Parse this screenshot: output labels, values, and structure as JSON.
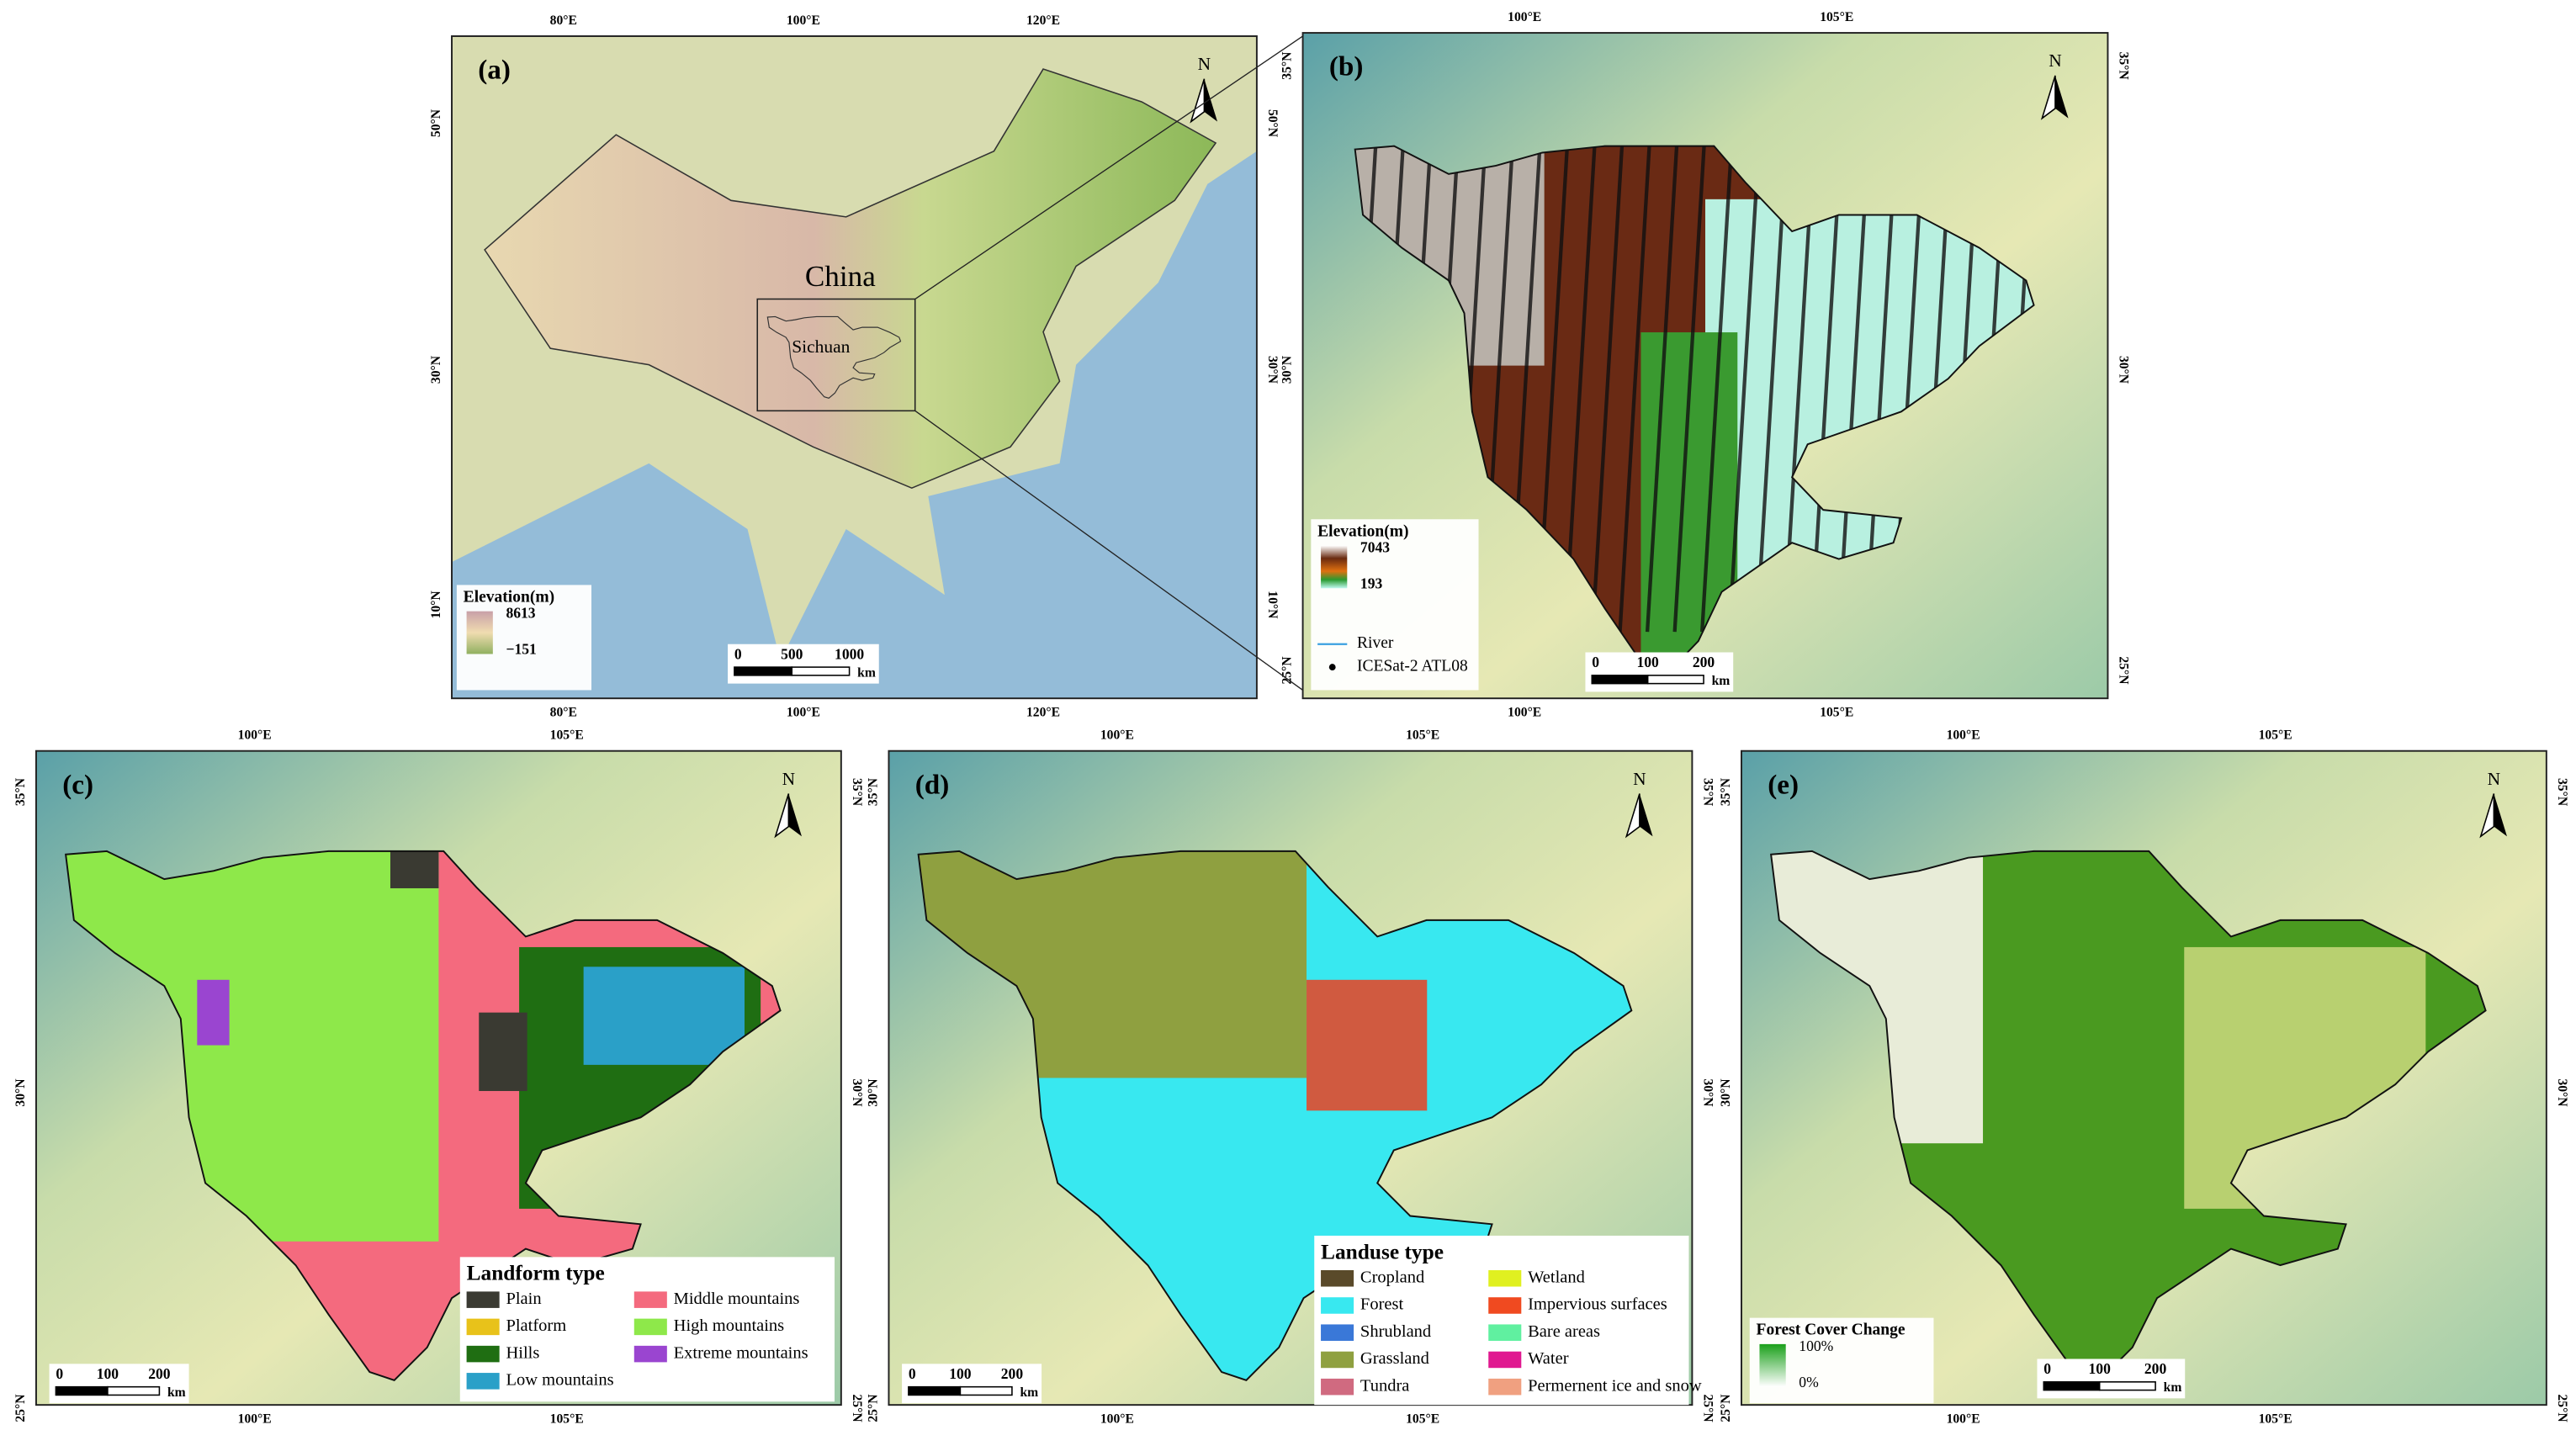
{
  "panels": [
    {
      "label": "(a)",
      "lon_ticks": [
        "80°E",
        "100°E",
        "120°E"
      ],
      "lat_ticks": [
        "50°N",
        "30°N",
        "10°N"
      ],
      "north": "N",
      "place_labels": [
        "China",
        "Sichuan"
      ],
      "legend": {
        "title": "Elevation(m)",
        "max": "8613",
        "min": "−151"
      },
      "scale": {
        "ticks": [
          "0",
          "500",
          "1000"
        ],
        "unit": "km"
      }
    },
    {
      "label": "(b)",
      "lon_ticks": [
        "100°E",
        "105°E"
      ],
      "lat_ticks": [
        "35°N",
        "30°N",
        "25°N"
      ],
      "north": "N",
      "legend": {
        "title": "Elevation(m)",
        "max": "7043",
        "min": "193",
        "items": [
          {
            "name": "River",
            "color": "#3aa0e0"
          },
          {
            "name": "ICESat-2 ATL08",
            "color": "#000000"
          }
        ]
      },
      "scale": {
        "ticks": [
          "0",
          "100",
          "200"
        ],
        "unit": "km"
      }
    },
    {
      "label": "(c)",
      "lon_ticks": [
        "100°E",
        "105°E"
      ],
      "lat_ticks": [
        "35°N",
        "30°N",
        "25°N"
      ],
      "north": "N",
      "legend": {
        "title": "Landform type",
        "items": [
          {
            "name": "Plain",
            "color": "#3a3a32"
          },
          {
            "name": "Platform",
            "color": "#e8c21a"
          },
          {
            "name": "Hills",
            "color": "#1f6e12"
          },
          {
            "name": "Low mountains",
            "color": "#2aa0c8"
          },
          {
            "name": "Middle mountains",
            "color": "#f46a7e"
          },
          {
            "name": "High mountains",
            "color": "#8ee84a"
          },
          {
            "name": "Extreme mountains",
            "color": "#9a45d0"
          }
        ]
      },
      "scale": {
        "ticks": [
          "0",
          "100",
          "200"
        ],
        "unit": "km"
      }
    },
    {
      "label": "(d)",
      "lon_ticks": [
        "100°E",
        "105°E"
      ],
      "lat_ticks": [
        "35°N",
        "30°N",
        "25°N"
      ],
      "north": "N",
      "legend": {
        "title": "Landuse type",
        "items": [
          {
            "name": "Cropland",
            "color": "#5a4a2a"
          },
          {
            "name": "Forest",
            "color": "#38e8f0"
          },
          {
            "name": "Shrubland",
            "color": "#3a78d8"
          },
          {
            "name": "Grassland",
            "color": "#8fa040"
          },
          {
            "name": "Tundra",
            "color": "#d06a80"
          },
          {
            "name": "Wetland",
            "color": "#e0f020"
          },
          {
            "name": "Impervious surfaces",
            "color": "#f04a20"
          },
          {
            "name": "Bare areas",
            "color": "#60f0a0"
          },
          {
            "name": "Water",
            "color": "#e01890"
          },
          {
            "name": "Permernent ice and snow",
            "color": "#f0a080"
          }
        ]
      },
      "scale": {
        "ticks": [
          "0",
          "100",
          "200"
        ],
        "unit": "km"
      }
    },
    {
      "label": "(e)",
      "lon_ticks": [
        "100°E",
        "105°E"
      ],
      "lat_ticks": [
        "35°N",
        "30°N",
        "25°N"
      ],
      "north": "N",
      "legend": {
        "title": "Forest Cover Change",
        "max": "100%",
        "min": "0%"
      },
      "scale": {
        "ticks": [
          "0",
          "100",
          "200"
        ],
        "unit": "km"
      }
    }
  ]
}
